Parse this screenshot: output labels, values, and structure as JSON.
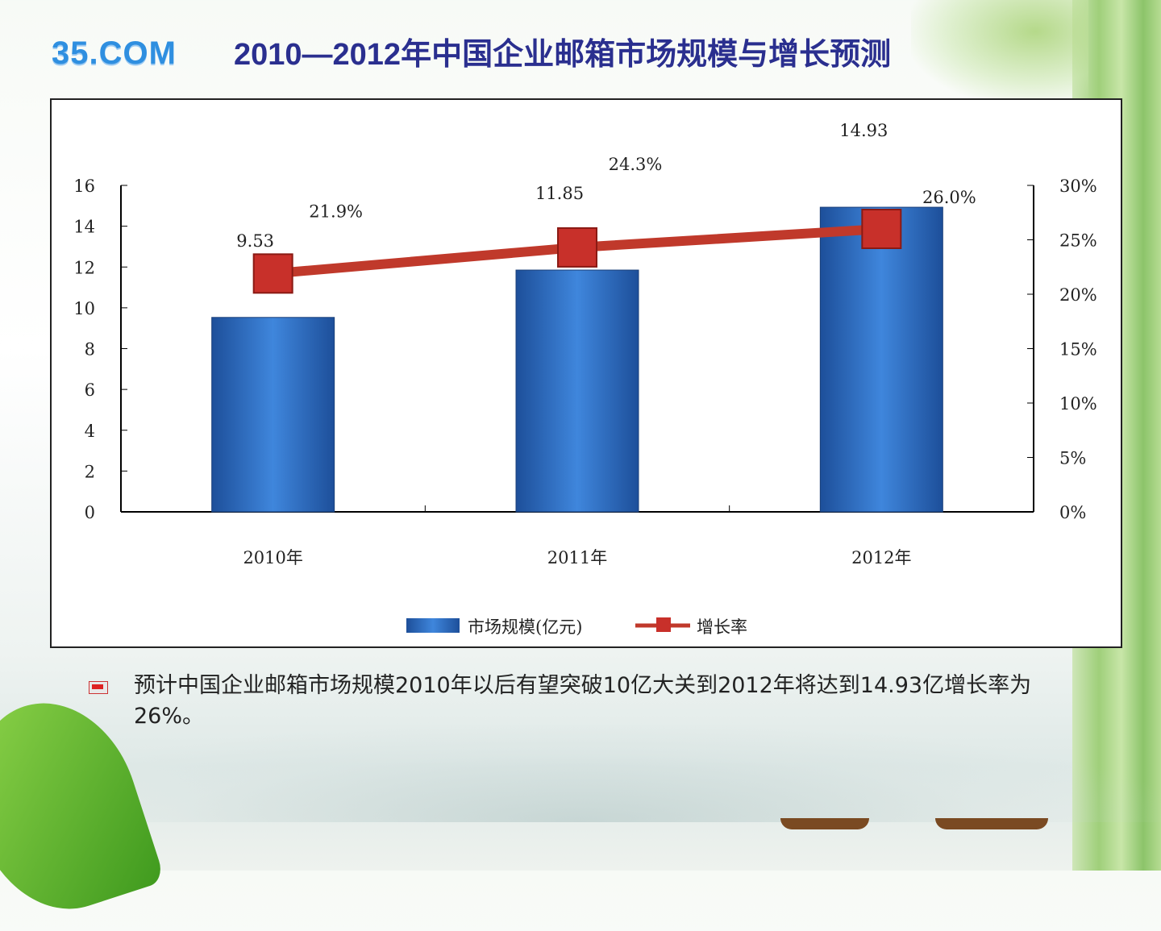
{
  "logo": "35.COM",
  "title": "2010—2012年中国企业邮箱市场规模与增长预测",
  "note": "预计中国企业邮箱市场规模2010年以后有望突破10亿大关到2012年将达到14.93亿增长率为26%。",
  "chart_data": {
    "type": "bar+line",
    "categories": [
      "2010年",
      "2011年",
      "2012年"
    ],
    "series": [
      {
        "name": "市场规模(亿元)",
        "type": "bar",
        "axis": "left",
        "values": [
          9.53,
          11.85,
          14.93
        ],
        "labels": [
          "9.53",
          "11.85",
          "14.93"
        ],
        "color": "#2e6fc4"
      },
      {
        "name": "增长率",
        "type": "line",
        "axis": "right",
        "values": [
          21.9,
          24.3,
          26.0
        ],
        "labels": [
          "21.9%",
          "24.3%",
          "26.0%"
        ],
        "color": "#c0392b"
      }
    ],
    "left_axis": {
      "range": [
        0,
        16
      ],
      "ticks": [
        "0",
        "2",
        "4",
        "6",
        "8",
        "10",
        "12",
        "14",
        "16"
      ]
    },
    "right_axis": {
      "range": [
        0,
        30
      ],
      "ticks": [
        "0%",
        "5%",
        "10%",
        "15%",
        "20%",
        "25%",
        "30%"
      ]
    },
    "legend": {
      "position": "bottom",
      "items": [
        "市场规模(亿元)",
        "增长率"
      ]
    },
    "grid": false
  }
}
